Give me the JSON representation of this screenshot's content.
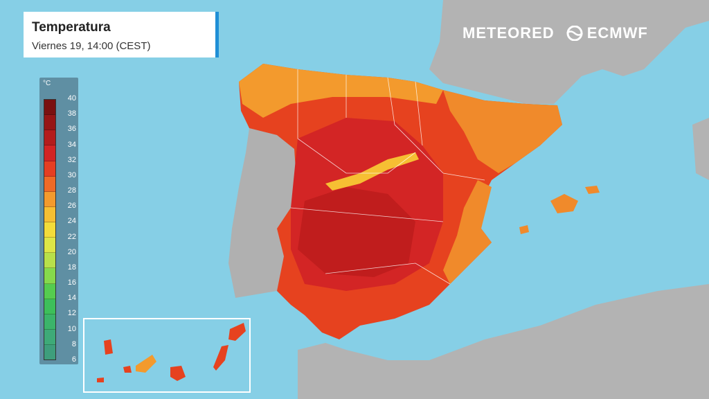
{
  "title": {
    "heading": "Temperatura",
    "subtitle": "Viernes 19, 14:00 (CEST)"
  },
  "logos": {
    "meteored": "METEORED",
    "ecmwf": "ECMWF"
  },
  "legend": {
    "unit": "°C",
    "labels": [
      "40",
      "38",
      "36",
      "34",
      "32",
      "30",
      "28",
      "26",
      "24",
      "22",
      "20",
      "18",
      "16",
      "14",
      "12",
      "10",
      "8",
      "6"
    ],
    "colors": [
      "#7a1010",
      "#961515",
      "#b41c1c",
      "#d22424",
      "#e63e22",
      "#ef6a27",
      "#f39a2d",
      "#f6bf33",
      "#f3dc3a",
      "#dde646",
      "#b8e04a",
      "#86d94c",
      "#55cc4f",
      "#3dbf5a",
      "#3bb46a",
      "#3eaa78",
      "#3e9e7c"
    ]
  },
  "colors": {
    "sea": "#86cfe6",
    "land_gray": "#b2b2b2",
    "accent": "#1f8fd6"
  }
}
